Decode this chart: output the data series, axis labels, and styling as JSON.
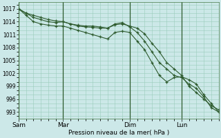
{
  "background_color": "#cce8e8",
  "grid_color": "#99ccbb",
  "line_color": "#2d5a2d",
  "xlabel": "Pression niveau de la mer( hPa )",
  "ylim": [
    991.5,
    1018.5
  ],
  "yticks": [
    993,
    996,
    999,
    1002,
    1005,
    1008,
    1011,
    1014,
    1017
  ],
  "xtick_labels": [
    "Sam",
    "Mar",
    "Dim",
    "Lun"
  ],
  "xtick_positions": [
    0,
    6,
    15,
    22
  ],
  "xlim": [
    0,
    27
  ],
  "vlines_x": [
    0,
    6,
    15,
    22
  ],
  "series1_x": [
    0,
    1,
    2,
    3,
    4,
    5,
    6,
    7,
    8,
    9,
    10,
    11,
    12,
    13,
    14,
    15,
    16,
    17,
    18,
    19,
    20,
    21,
    22,
    23,
    24,
    25,
    26,
    27
  ],
  "series1_y": [
    1017.0,
    1016.0,
    1015.5,
    1015.0,
    1014.5,
    1014.2,
    1014.0,
    1013.5,
    1013.0,
    1012.8,
    1012.7,
    1012.5,
    1012.5,
    1013.3,
    1013.5,
    1013.0,
    1012.5,
    1011.2,
    1009.0,
    1007.0,
    1004.5,
    1003.0,
    1001.5,
    999.0,
    997.5,
    996.0,
    994.5,
    993.5
  ],
  "series2_x": [
    0,
    1,
    2,
    3,
    4,
    5,
    6,
    7,
    8,
    9,
    10,
    11,
    12,
    13,
    14,
    15,
    16,
    17,
    18,
    19,
    20,
    21,
    22,
    23,
    24,
    25,
    26,
    27
  ],
  "series2_y": [
    1017.0,
    1016.0,
    1015.0,
    1014.5,
    1014.0,
    1013.8,
    1014.0,
    1013.5,
    1013.2,
    1013.0,
    1013.0,
    1012.8,
    1012.5,
    1013.5,
    1013.8,
    1012.8,
    1011.5,
    1009.5,
    1007.0,
    1004.5,
    1003.0,
    1001.5,
    1001.0,
    999.5,
    998.5,
    996.5,
    994.0,
    993.0
  ],
  "series3_x": [
    0,
    1,
    2,
    3,
    4,
    5,
    6,
    7,
    8,
    9,
    10,
    11,
    12,
    13,
    14,
    15,
    16,
    17,
    18,
    19,
    20,
    21,
    22,
    23,
    24,
    25,
    26,
    27
  ],
  "series3_y": [
    1017.0,
    1015.5,
    1014.0,
    1013.5,
    1013.2,
    1013.0,
    1013.0,
    1012.5,
    1012.0,
    1011.5,
    1011.0,
    1010.5,
    1010.0,
    1011.5,
    1011.8,
    1011.5,
    1009.5,
    1007.5,
    1004.5,
    1001.5,
    1000.0,
    1001.0,
    1001.2,
    1000.5,
    999.5,
    997.0,
    995.0,
    993.0
  ]
}
